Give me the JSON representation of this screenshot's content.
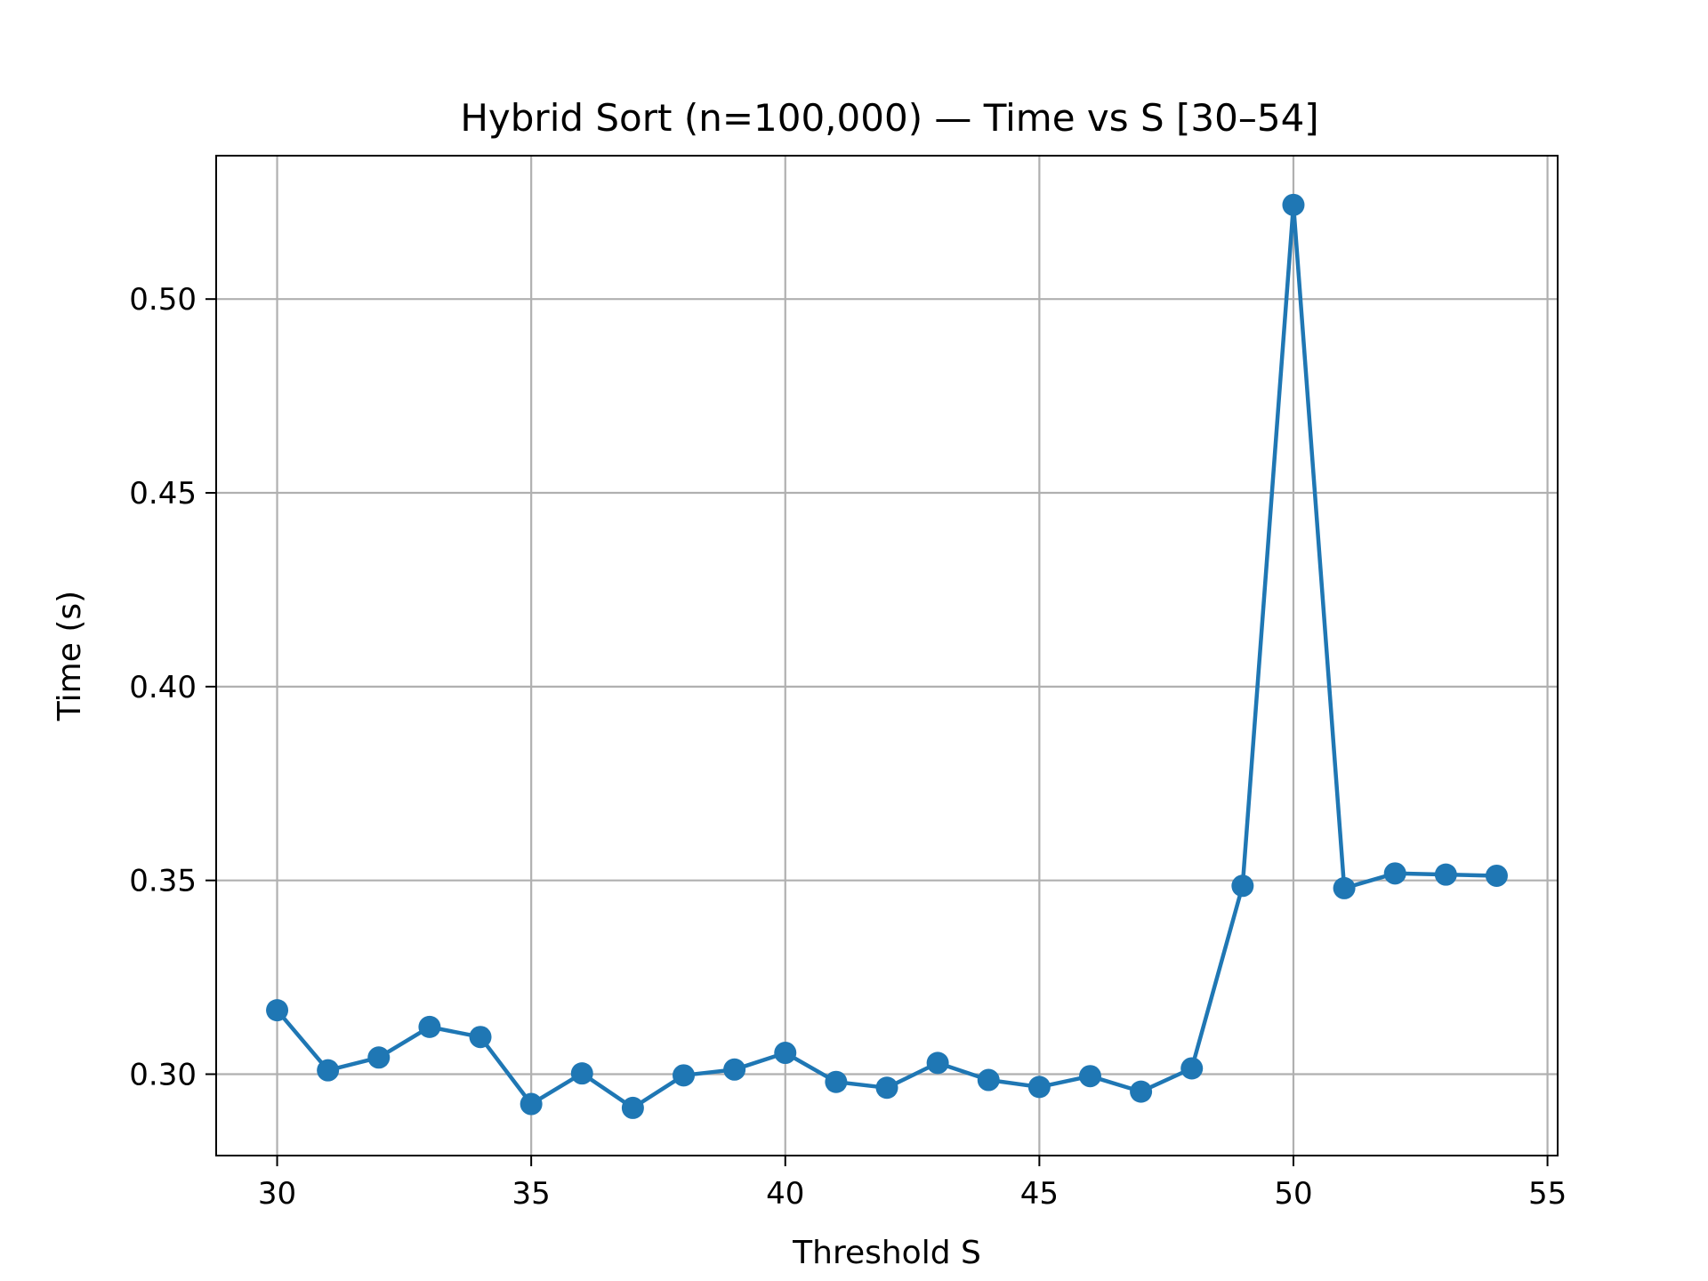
{
  "chart_data": {
    "type": "line",
    "title": "Hybrid Sort (n=100,000) — Time vs S [30–54]",
    "xlabel": "Threshold S",
    "ylabel": "Time (s)",
    "xlim": [
      28.8,
      55.2
    ],
    "ylim": [
      0.279,
      0.537
    ],
    "xticks": [
      30,
      35,
      40,
      45,
      50,
      55
    ],
    "xtick_labels": [
      "30",
      "35",
      "40",
      "45",
      "50",
      "55"
    ],
    "yticks": [
      0.3,
      0.35,
      0.4,
      0.45,
      0.5
    ],
    "ytick_labels": [
      "0.30",
      "0.35",
      "0.40",
      "0.45",
      "0.50"
    ],
    "grid": true,
    "color": "#1f77b4",
    "marker": "circle",
    "x": [
      30,
      31,
      32,
      33,
      34,
      35,
      36,
      37,
      38,
      39,
      40,
      41,
      42,
      43,
      44,
      45,
      46,
      47,
      48,
      49,
      50,
      51,
      52,
      53,
      54
    ],
    "y": [
      0.3165,
      0.301,
      0.3043,
      0.3122,
      0.3096,
      0.2923,
      0.3002,
      0.2913,
      0.2997,
      0.3012,
      0.3055,
      0.298,
      0.2965,
      0.3029,
      0.2985,
      0.2967,
      0.2995,
      0.2955,
      0.3015,
      0.3486,
      0.5243,
      0.348,
      0.3518,
      0.3515,
      0.3512
    ]
  }
}
